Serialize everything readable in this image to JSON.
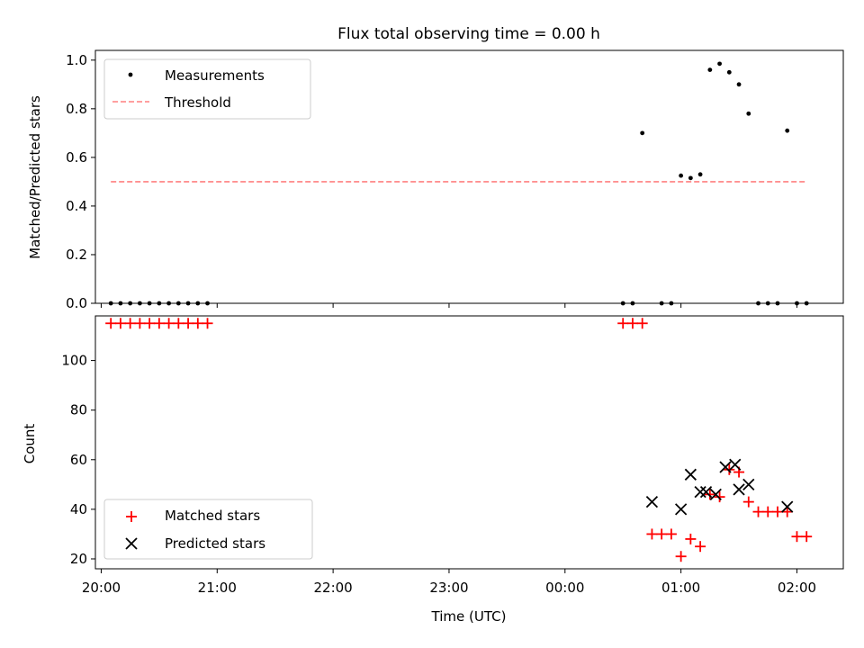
{
  "title": "Flux total observing time = 0.00 h",
  "chart_data": [
    {
      "type": "scatter",
      "ylabel": "Matched/Predicted stars",
      "ylim": [
        0,
        1.04
      ],
      "yticks": [
        "0.0",
        "0.2",
        "0.4",
        "0.6",
        "0.8",
        "1.0"
      ],
      "ytick_values": [
        0,
        0.2,
        0.4,
        0.6,
        0.8,
        1.0
      ],
      "grid": false,
      "legend_position": "top-left",
      "series": [
        {
          "name": "Measurements",
          "kind": "scatter",
          "color": "#000000",
          "x": [
            "20:05",
            "20:10",
            "20:15",
            "20:20",
            "20:25",
            "20:30",
            "20:35",
            "20:40",
            "20:45",
            "20:50",
            "20:55",
            "00:30",
            "00:35",
            "00:40",
            "00:50",
            "00:55",
            "01:00",
            "01:05",
            "01:10",
            "01:15",
            "01:20",
            "01:25",
            "01:30",
            "01:35",
            "01:40",
            "01:45",
            "01:50",
            "01:55",
            "02:00",
            "02:05"
          ],
          "y": [
            0,
            0,
            0,
            0,
            0,
            0,
            0,
            0,
            0,
            0,
            0,
            0,
            0,
            0.7,
            0,
            0,
            0.525,
            0.515,
            0.53,
            0.96,
            0.985,
            0.95,
            0.9,
            0.78,
            0,
            0,
            0,
            0.71,
            0,
            0
          ]
        },
        {
          "name": "Threshold",
          "kind": "line",
          "style": "dashed",
          "color": "#ff8080",
          "x": [
            "20:05",
            "02:05"
          ],
          "y": [
            0.5,
            0.5
          ]
        }
      ]
    },
    {
      "type": "scatter",
      "xlabel": "Time (UTC)",
      "ylabel": "Count",
      "ylim": [
        16,
        118
      ],
      "yticks": [
        "20",
        "40",
        "60",
        "80",
        "100"
      ],
      "ytick_values": [
        20,
        40,
        60,
        80,
        100
      ],
      "xticks": [
        "20:00",
        "21:00",
        "22:00",
        "23:00",
        "00:00",
        "01:00",
        "02:00"
      ],
      "xtick_values": [
        "20:00",
        "21:00",
        "22:00",
        "23:00",
        "00:00",
        "01:00",
        "02:00"
      ],
      "xlim": [
        "19:57",
        "02:24"
      ],
      "grid": false,
      "legend_position": "bottom-left",
      "series": [
        {
          "name": "Matched stars",
          "marker": "+",
          "color": "#ff0000",
          "x": [
            "20:05",
            "20:10",
            "20:15",
            "20:20",
            "20:25",
            "20:30",
            "20:35",
            "20:40",
            "20:45",
            "20:50",
            "20:55",
            "00:30",
            "00:35",
            "00:40",
            "00:45",
            "00:50",
            "00:55",
            "01:00",
            "01:05",
            "01:10",
            "01:15",
            "01:20",
            "01:25",
            "01:30",
            "01:35",
            "01:40",
            "01:45",
            "01:50",
            "01:55",
            "02:00",
            "02:05"
          ],
          "y": [
            115,
            115,
            115,
            115,
            115,
            115,
            115,
            115,
            115,
            115,
            115,
            115,
            115,
            115,
            30,
            30,
            30,
            21,
            28,
            25,
            46,
            45,
            56,
            55,
            43,
            39,
            39,
            39,
            39,
            29,
            29
          ]
        },
        {
          "name": "Predicted stars",
          "marker": "x",
          "color": "#000000",
          "x": [
            "00:45",
            "01:00",
            "01:05",
            "01:10",
            "01:13",
            "01:18",
            "01:23",
            "01:28",
            "01:30",
            "01:35",
            "01:55"
          ],
          "y": [
            43,
            40,
            54,
            47,
            47,
            46,
            57,
            58,
            48,
            50,
            41
          ]
        }
      ]
    }
  ]
}
